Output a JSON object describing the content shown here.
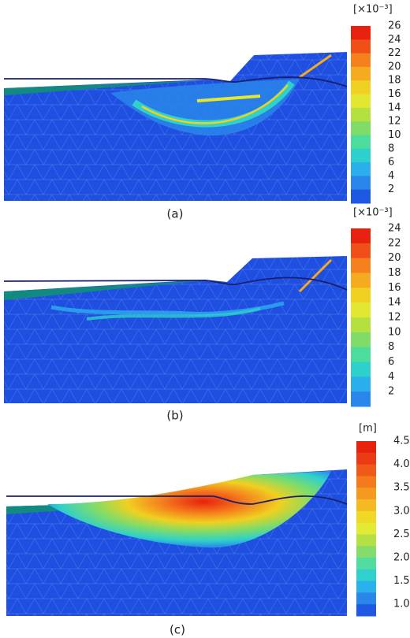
{
  "panels": [
    {
      "label": "(a)",
      "unit": "[×10⁻³]",
      "colorbar": {
        "ticks": [
          "26",
          "24",
          "22",
          "20",
          "18",
          "16",
          "14",
          "12",
          "10",
          "8",
          "6",
          "4",
          "2"
        ],
        "colors": [
          "#e8200e",
          "#f05018",
          "#f5801e",
          "#f5aa20",
          "#f0d020",
          "#e2e832",
          "#b4e040",
          "#80dc68",
          "#4cdc9c",
          "#2ed0cc",
          "#2aaeec",
          "#2a86ea",
          "#1f58e2"
        ]
      }
    },
    {
      "label": "(b)",
      "unit": "[×10⁻³]",
      "colorbar": {
        "ticks": [
          "24",
          "22",
          "20",
          "18",
          "16",
          "14",
          "12",
          "10",
          "8",
          "6",
          "4",
          "2"
        ],
        "colors": [
          "#e8200e",
          "#f05018",
          "#f5801e",
          "#f5aa20",
          "#f0d020",
          "#e2e832",
          "#b4e040",
          "#80dc68",
          "#4cdc9c",
          "#2ed0cc",
          "#2aaeec",
          "#2a86ea"
        ]
      }
    },
    {
      "label": "(c)",
      "unit": "[m]",
      "colorbar": {
        "ticks": [
          "4.5",
          "4.0",
          "3.5",
          "3.0",
          "2.5",
          "2.0",
          "1.5",
          "1.0"
        ],
        "colors": [
          "#e8200e",
          "#ec3a14",
          "#f05a18",
          "#f47a1c",
          "#f59a20",
          "#f5ba22",
          "#f0d824",
          "#e2ea34",
          "#b4e044",
          "#84dc6c",
          "#52dca0",
          "#30d0cc",
          "#2ab0ec",
          "#2a86ea",
          "#1f58e2"
        ]
      }
    }
  ]
}
